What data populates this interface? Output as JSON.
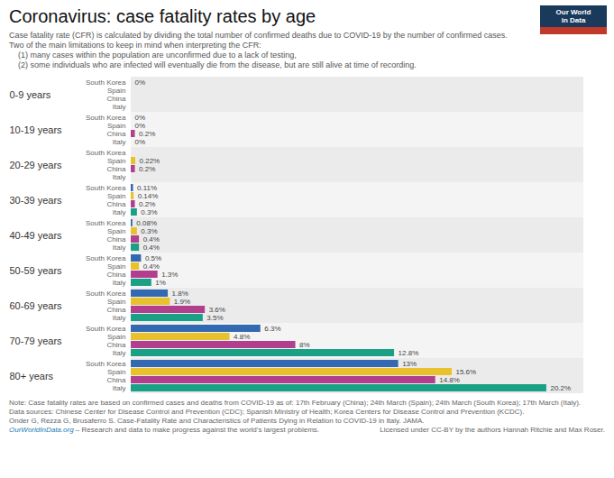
{
  "chart_data": {
    "type": "bar",
    "orientation": "horizontal",
    "title": "Coronavirus: case fatality rates by age",
    "subtitle": [
      "Case fatality rate (CFR) is calculated by dividing the total number of confirmed deaths due to COVID-19 by the number of confirmed cases.",
      "Two of the main limitations to keep in mind when interpreting the CFR:",
      "    (1) many cases within the population are unconfirmed due to a lack of testing,",
      "    (2) some individuals who are infected will eventually die from the disease, but are still alive at time of recording."
    ],
    "categories": [
      "0-9 years",
      "10-19 years",
      "20-29 years",
      "30-39 years",
      "40-49 years",
      "50-59 years",
      "60-69 years",
      "70-79 years",
      "80+ years"
    ],
    "series": [
      {
        "name": "South Korea",
        "color": "#3369b0",
        "values": [
          0.0,
          0.0,
          0.0,
          0.11,
          0.08,
          0.5,
          1.8,
          6.3,
          13.0
        ],
        "value_labels": [
          "0%",
          "0%",
          null,
          "0.11%",
          "0.08%",
          "0.5%",
          "1.8%",
          "6.3%",
          "13%"
        ]
      },
      {
        "name": "Spain",
        "color": "#e8c12c",
        "values": [
          0.0,
          0.0,
          0.22,
          0.14,
          0.3,
          0.4,
          1.9,
          4.8,
          15.6
        ],
        "value_labels": [
          null,
          "0%",
          "0.22%",
          "0.14%",
          "0.3%",
          "0.4%",
          "1.9%",
          "4.8%",
          "15.6%"
        ]
      },
      {
        "name": "China",
        "color": "#b13f8e",
        "values": [
          0.0,
          0.2,
          0.2,
          0.2,
          0.4,
          1.3,
          3.6,
          8.0,
          14.8
        ],
        "value_labels": [
          null,
          "0.2%",
          "0.2%",
          "0.2%",
          "0.4%",
          "1.3%",
          "3.6%",
          "8%",
          "14.8%"
        ]
      },
      {
        "name": "Italy",
        "color": "#1aa085",
        "values": [
          0.0,
          0.0,
          0.0,
          0.3,
          0.4,
          1.0,
          3.5,
          12.8,
          20.2
        ],
        "value_labels": [
          null,
          "0%",
          null,
          "0.3%",
          "0.4%",
          "1%",
          "3.5%",
          "12.8%",
          "20.2%"
        ]
      }
    ],
    "xlim": [
      0,
      22
    ],
    "tick_labels": "y",
    "data_labels": true,
    "logo": [
      "Our World",
      "in Data"
    ],
    "notes": [
      "Note: Case fatality rates are based on confirmed cases and deaths from COVID-19 as of: 17th February (China); 24th March (Spain); 24th March (South Korea); 17th March (Italy).",
      "Data sources: Chinese Center for Disease Control and Prevention (CDC); Spanish Ministry of Health; Korea Centers for Disease Control and Prevention (KCDC).",
      "Onder G, Rezza G, Brusaferro S. Case-Fatality Rate and Characteristics of Patients Dying in Relation to COVID-19 in Italy. JAMA."
    ],
    "source_url": "OurWorldInData.org",
    "source_suffix": " – Research and data to make progress against the world’s largest problems.",
    "license": "Licensed under CC-BY by the authors Hannah Ritchie and Max Roser."
  }
}
